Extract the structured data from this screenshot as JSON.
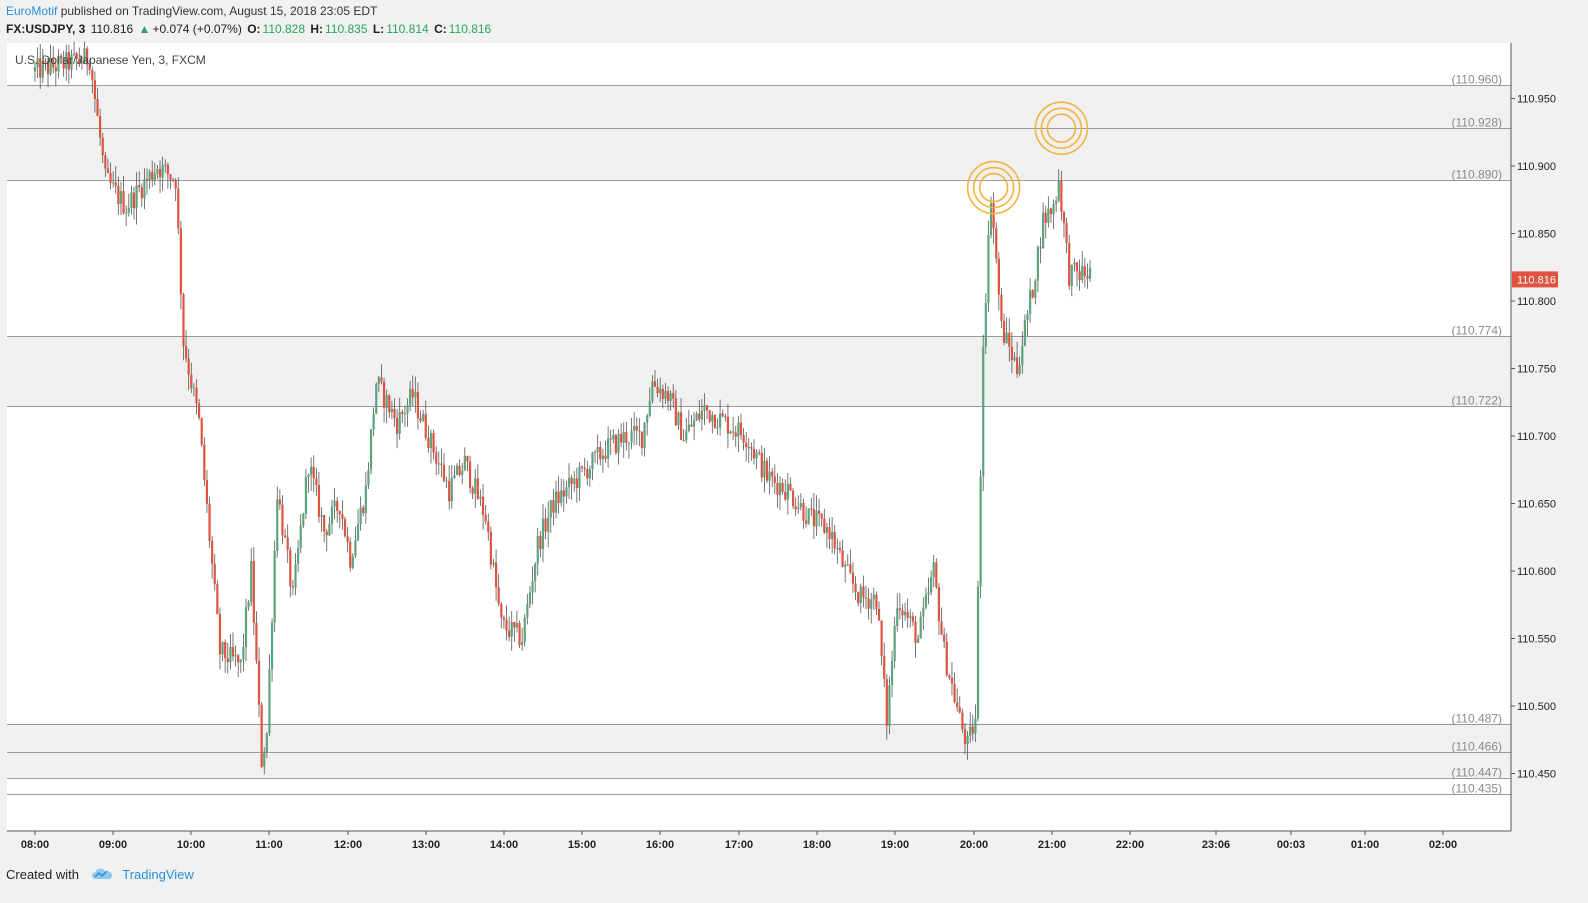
{
  "header": {
    "author": "EuroMotif",
    "published_text": "published on TradingView.com, August 15, 2018 23:05 EDT",
    "symbol": "FX:USDJPY, 3",
    "last": "110.816",
    "change": "+0.074 (+0.07%)",
    "open_label": "O:",
    "open": "110.828",
    "high_label": "H:",
    "high": "110.835",
    "low_label": "L:",
    "low": "110.814",
    "close_label": "C:",
    "close": "110.816"
  },
  "footer": {
    "created_with": "Created with",
    "brand": "TradingView"
  },
  "colors": {
    "up": "#5da37d",
    "down": "#e0533f",
    "accent": "#2a8fd6",
    "circle": "#f2b43c",
    "zone": "#f0f0f0"
  },
  "chart_data": {
    "type": "candlestick",
    "title": "U.S. Dollar/Japanese Yen, 3, FXCM",
    "ylim": [
      110.405,
      110.985
    ],
    "y_ticks": [
      110.45,
      110.5,
      110.55,
      110.6,
      110.65,
      110.7,
      110.75,
      110.8,
      110.85,
      110.9,
      110.95
    ],
    "y_tick_labels": [
      "110.450",
      "110.500",
      "110.550",
      "110.600",
      "110.650",
      "110.700",
      "110.750",
      "110.800",
      "110.850",
      "110.900",
      "110.950"
    ],
    "x_ticks": [
      "08:00",
      "09:00",
      "10:00",
      "11:00",
      "12:00",
      "13:00",
      "14:00",
      "15:00",
      "16:00",
      "17:00",
      "18:00",
      "19:00",
      "20:00",
      "21:00",
      "22:00",
      "23:06",
      "00:03",
      "01:00",
      "02:00"
    ],
    "current_price": "110.816",
    "horizontal_levels": [
      {
        "value": 110.96,
        "label": "(110.960)"
      },
      {
        "value": 110.928,
        "label": "(110.928)"
      },
      {
        "value": 110.89,
        "label": "(110.890)"
      },
      {
        "value": 110.774,
        "label": "(110.774)"
      },
      {
        "value": 110.722,
        "label": "(110.722)"
      },
      {
        "value": 110.487,
        "label": "(110.487)"
      },
      {
        "value": 110.466,
        "label": "(110.466)"
      },
      {
        "value": 110.447,
        "label": "(110.447)"
      },
      {
        "value": 110.435,
        "label": "(110.435)"
      }
    ],
    "zones": [
      [
        110.928,
        110.96
      ],
      [
        110.89,
        110.928
      ],
      [
        110.722,
        110.774
      ],
      [
        110.466,
        110.487
      ],
      [
        110.447,
        110.466
      ]
    ],
    "highlight_circles": [
      {
        "time_index": 368,
        "price": 110.884
      },
      {
        "time_index": 394,
        "price": 110.928
      }
    ],
    "path_keypoints": [
      [
        0,
        110.97
      ],
      [
        22,
        110.98
      ],
      [
        28,
        110.89
      ],
      [
        36,
        110.87
      ],
      [
        48,
        110.9
      ],
      [
        55,
        110.89
      ],
      [
        58,
        110.77
      ],
      [
        64,
        110.71
      ],
      [
        72,
        110.54
      ],
      [
        80,
        110.53
      ],
      [
        84,
        110.6
      ],
      [
        88,
        110.46
      ],
      [
        90,
        110.48
      ],
      [
        94,
        110.66
      ],
      [
        100,
        110.58
      ],
      [
        106,
        110.68
      ],
      [
        112,
        110.63
      ],
      [
        118,
        110.65
      ],
      [
        122,
        110.61
      ],
      [
        128,
        110.66
      ],
      [
        132,
        110.74
      ],
      [
        140,
        110.71
      ],
      [
        146,
        110.73
      ],
      [
        154,
        110.69
      ],
      [
        160,
        110.66
      ],
      [
        166,
        110.68
      ],
      [
        174,
        110.64
      ],
      [
        180,
        110.56
      ],
      [
        188,
        110.55
      ],
      [
        194,
        110.62
      ],
      [
        200,
        110.65
      ],
      [
        210,
        110.67
      ],
      [
        220,
        110.69
      ],
      [
        228,
        110.7
      ],
      [
        234,
        110.7
      ],
      [
        238,
        110.74
      ],
      [
        244,
        110.73
      ],
      [
        250,
        110.7
      ],
      [
        258,
        110.72
      ],
      [
        266,
        110.71
      ],
      [
        274,
        110.7
      ],
      [
        282,
        110.67
      ],
      [
        290,
        110.66
      ],
      [
        298,
        110.64
      ],
      [
        306,
        110.63
      ],
      [
        312,
        110.6
      ],
      [
        318,
        110.58
      ],
      [
        324,
        110.58
      ],
      [
        328,
        110.49
      ],
      [
        332,
        110.58
      ],
      [
        340,
        110.55
      ],
      [
        346,
        110.6
      ],
      [
        350,
        110.54
      ],
      [
        356,
        110.49
      ],
      [
        359,
        110.47
      ],
      [
        362,
        110.49
      ],
      [
        365,
        110.77
      ],
      [
        368,
        110.88
      ],
      [
        372,
        110.78
      ],
      [
        378,
        110.75
      ],
      [
        384,
        110.81
      ],
      [
        388,
        110.86
      ],
      [
        392,
        110.87
      ],
      [
        394,
        110.89
      ],
      [
        398,
        110.82
      ],
      [
        402,
        110.82
      ],
      [
        405,
        110.82
      ]
    ]
  }
}
